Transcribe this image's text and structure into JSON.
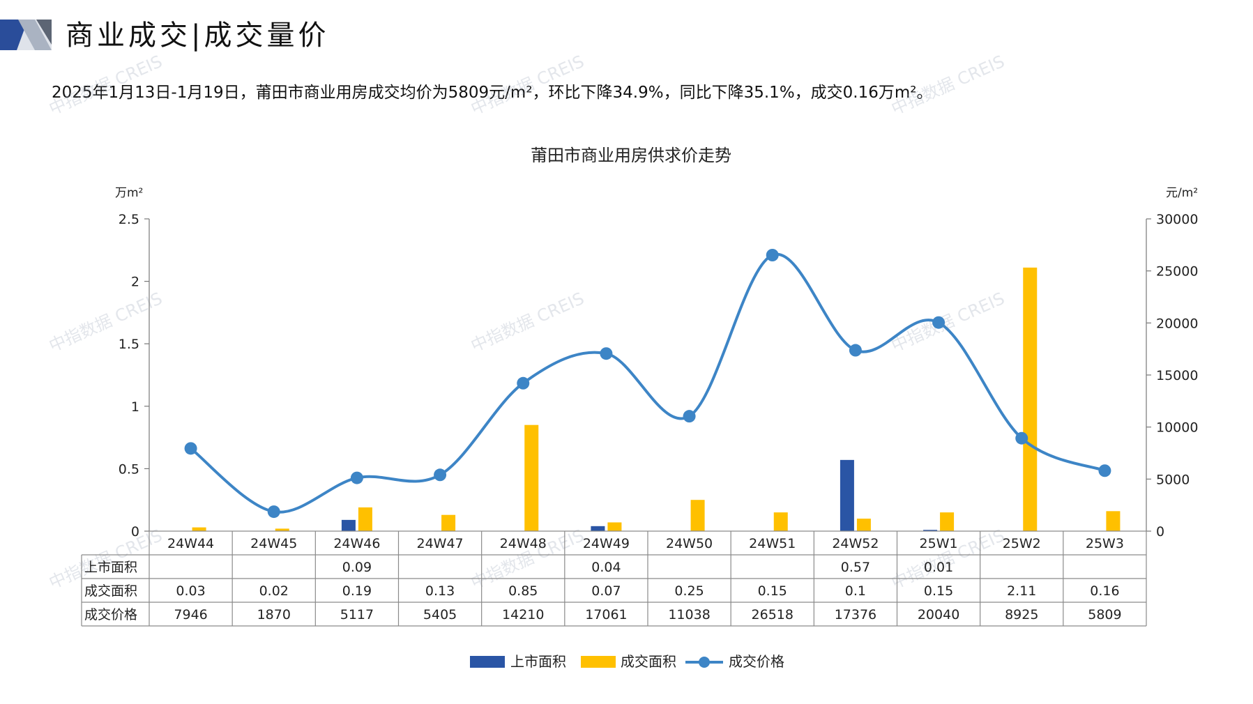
{
  "header": {
    "title": "商业成交|成交量价",
    "summary": "2025年1月13日-1月19日，莆田市商业用房成交均价为5809元/m²，环比下降34.9%，同比下降35.1%，成交0.16万m²。"
  },
  "watermark": "中指数据 CREIS",
  "colors": {
    "listed": "#2a55a5",
    "traded": "#ffc000",
    "price": "#3d85c6"
  },
  "chart_data": {
    "type": "bar",
    "title": "莆田市商业用房供求价走势",
    "left_unit": "万m²",
    "right_unit": "元/m²",
    "left_ticks": [
      "2.5",
      "2",
      "1.5",
      "1",
      "0.5",
      "0"
    ],
    "right_ticks": [
      "30000",
      "25000",
      "20000",
      "15000",
      "10000",
      "5000",
      "0"
    ],
    "ylim_left": [
      0,
      2.5
    ],
    "ylim_right": [
      0,
      30000
    ],
    "categories": [
      "24W44",
      "24W45",
      "24W46",
      "24W47",
      "24W48",
      "24W49",
      "24W50",
      "24W51",
      "24W52",
      "25W1",
      "25W2",
      "25W3"
    ],
    "series": [
      {
        "name": "上市面积",
        "type": "bar",
        "axis": "left",
        "values": [
          null,
          null,
          0.09,
          null,
          null,
          0.04,
          null,
          null,
          0.57,
          0.01,
          null,
          null
        ],
        "labels": [
          "",
          "",
          "0.09",
          "",
          "",
          "0.04",
          "",
          "",
          "0.57",
          "0.01",
          "",
          ""
        ]
      },
      {
        "name": "成交面积",
        "type": "bar",
        "axis": "left",
        "values": [
          0.03,
          0.02,
          0.19,
          0.13,
          0.85,
          0.07,
          0.25,
          0.15,
          0.1,
          0.15,
          2.11,
          0.16
        ],
        "labels": [
          "0.03",
          "0.02",
          "0.19",
          "0.13",
          "0.85",
          "0.07",
          "0.25",
          "0.15",
          "0.1",
          "0.15",
          "2.11",
          "0.16"
        ]
      },
      {
        "name": "成交价格",
        "type": "line",
        "axis": "right",
        "values": [
          7946,
          1870,
          5117,
          5405,
          14210,
          17061,
          11038,
          26518,
          17376,
          20040,
          8925,
          5809
        ],
        "labels": [
          "7946",
          "1870",
          "5117",
          "5405",
          "14210",
          "17061",
          "11038",
          "26518",
          "17376",
          "20040",
          "8925",
          "5809"
        ]
      }
    ],
    "legend_position": "bottom"
  }
}
